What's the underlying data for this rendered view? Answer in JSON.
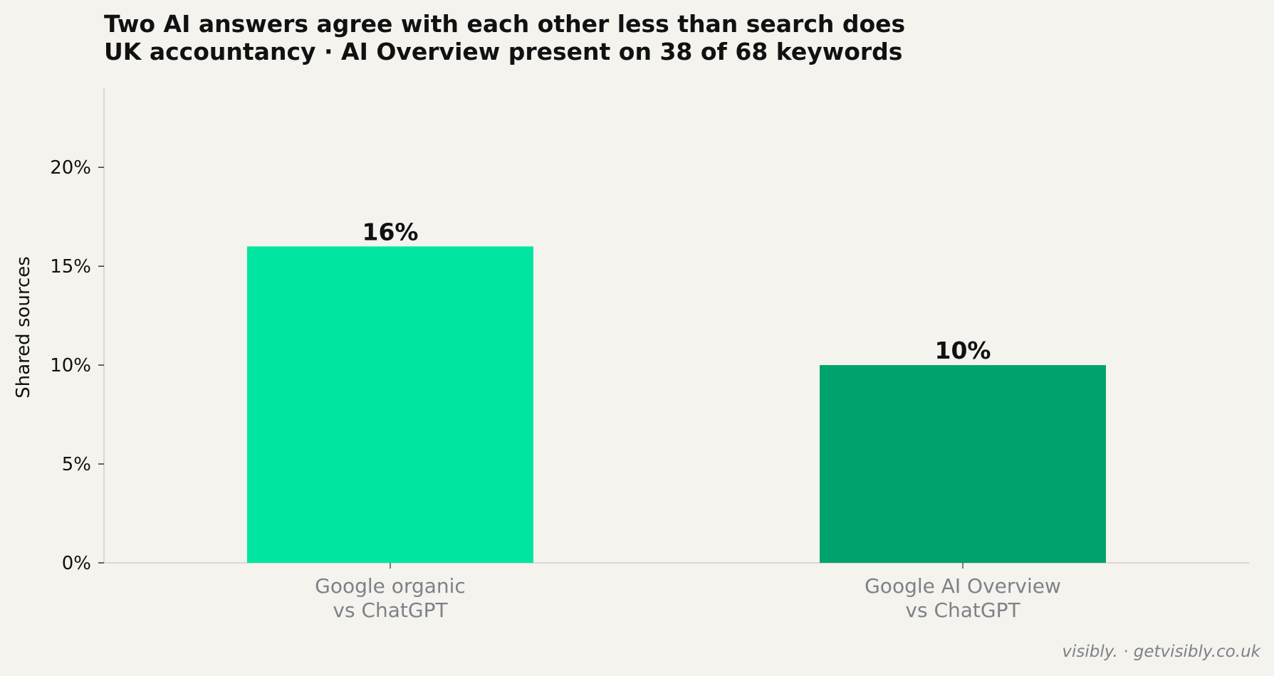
{
  "chart_data": {
    "type": "bar",
    "title": "Two AI answers agree with each other less than search does",
    "subtitle": "UK accountancy · AI Overview present on 38 of 68 keywords",
    "xlabel": "",
    "ylabel": "Shared sources",
    "categories": [
      [
        "Google organic",
        "vs ChatGPT"
      ],
      [
        "Google AI Overview",
        "vs ChatGPT"
      ]
    ],
    "values": [
      16,
      10
    ],
    "value_labels": [
      "16%",
      "10%"
    ],
    "bar_colors": [
      "#00e6a0",
      "#00a36d"
    ],
    "ylim": [
      0,
      24
    ],
    "yticks": [
      0,
      5,
      10,
      15,
      20
    ],
    "ytick_labels": [
      "0%",
      "5%",
      "10%",
      "15%",
      "20%"
    ],
    "grid": false,
    "legend": "none"
  },
  "footer": {
    "credit": "visibly. · getvisibly.co.uk"
  },
  "colors": {
    "background": "#f4f3ee",
    "axis": "#d0d0d0",
    "text": "#111111",
    "category_text": "#808088"
  }
}
